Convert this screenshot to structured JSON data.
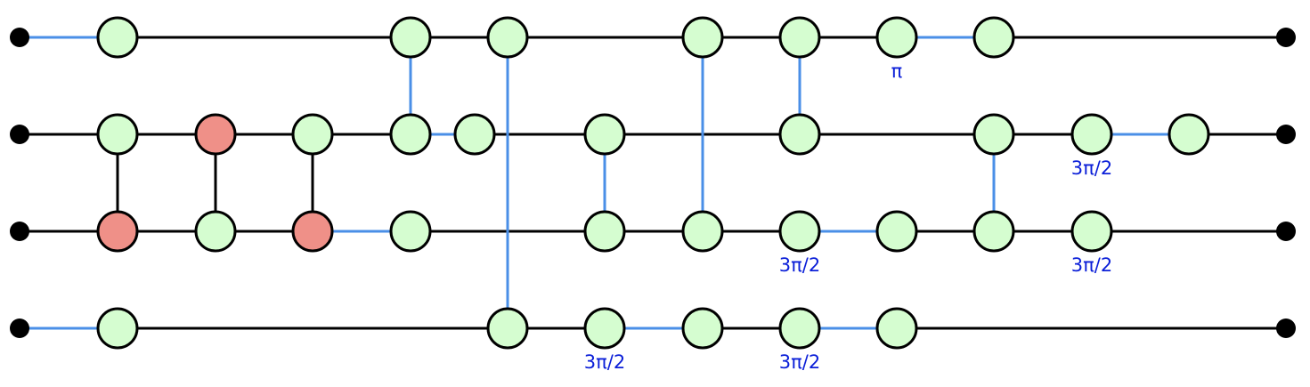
{
  "colors": {
    "plain_wire": "#000000",
    "hadamard_wire": "#4a8fe7",
    "green_spider": "#d5fdd0",
    "red_spider": "#ef9088",
    "boundary": "#000000",
    "selected_outline": "#0a1ee0",
    "phase_label": "#0b1fd8",
    "node_outline": "#000000"
  },
  "diagram": {
    "boundaries": [
      {
        "id": "in0"
      },
      {
        "id": "in1"
      },
      {
        "id": "in2"
      },
      {
        "id": "in3"
      },
      {
        "id": "out0"
      },
      {
        "id": "out1"
      },
      {
        "id": "out2"
      },
      {
        "id": "out3"
      }
    ],
    "spiders": [
      {
        "id": "z0a",
        "type": "Z"
      },
      {
        "id": "z0b",
        "type": "Z"
      },
      {
        "id": "z0c",
        "type": "Z"
      },
      {
        "id": "z0d",
        "type": "Z"
      },
      {
        "id": "z0e",
        "type": "Z"
      },
      {
        "id": "z0f",
        "type": "Z",
        "phase": "π"
      },
      {
        "id": "z0g",
        "type": "Z"
      },
      {
        "id": "z1a",
        "type": "Z"
      },
      {
        "id": "x1b",
        "type": "X"
      },
      {
        "id": "z1c",
        "type": "Z"
      },
      {
        "id": "z1d",
        "type": "Z"
      },
      {
        "id": "z1e",
        "type": "Z",
        "selected": true
      },
      {
        "id": "z1f",
        "type": "Z"
      },
      {
        "id": "z1g",
        "type": "Z"
      },
      {
        "id": "z1h",
        "type": "Z"
      },
      {
        "id": "z1i",
        "type": "Z",
        "phase": "3π/2"
      },
      {
        "id": "z1j",
        "type": "Z"
      },
      {
        "id": "x2a",
        "type": "X"
      },
      {
        "id": "z2b",
        "type": "Z"
      },
      {
        "id": "x2c",
        "type": "X"
      },
      {
        "id": "z2d",
        "type": "Z"
      },
      {
        "id": "z2e",
        "type": "Z"
      },
      {
        "id": "z2f",
        "type": "Z"
      },
      {
        "id": "z2g",
        "type": "Z",
        "phase": "3π/2"
      },
      {
        "id": "z2h",
        "type": "Z"
      },
      {
        "id": "z2i",
        "type": "Z"
      },
      {
        "id": "z2j",
        "type": "Z",
        "phase": "3π/2"
      },
      {
        "id": "z3a",
        "type": "Z"
      },
      {
        "id": "z3b",
        "type": "Z"
      },
      {
        "id": "z3c",
        "type": "Z",
        "phase": "3π/2"
      },
      {
        "id": "z3d",
        "type": "Z"
      },
      {
        "id": "z3e",
        "type": "Z",
        "phase": "3π/2"
      },
      {
        "id": "z3f",
        "type": "Z"
      }
    ],
    "edges": [
      {
        "from": "in0",
        "to": "z0a",
        "kind": "hadamard"
      },
      {
        "from": "z0a",
        "to": "z0b",
        "kind": "plain"
      },
      {
        "from": "z0b",
        "to": "z0c",
        "kind": "plain"
      },
      {
        "from": "z0c",
        "to": "z0d",
        "kind": "plain"
      },
      {
        "from": "z0d",
        "to": "z0e",
        "kind": "plain"
      },
      {
        "from": "z0e",
        "to": "z0f",
        "kind": "plain"
      },
      {
        "from": "z0f",
        "to": "z0g",
        "kind": "hadamard"
      },
      {
        "from": "z0g",
        "to": "out0",
        "kind": "plain"
      },
      {
        "from": "in1",
        "to": "z1a",
        "kind": "plain"
      },
      {
        "from": "z1a",
        "to": "x1b",
        "kind": "plain"
      },
      {
        "from": "x1b",
        "to": "z1c",
        "kind": "plain"
      },
      {
        "from": "z1c",
        "to": "z1d",
        "kind": "plain"
      },
      {
        "from": "z1d",
        "to": "z1e",
        "kind": "hadamard"
      },
      {
        "from": "z1e",
        "to": "z1f",
        "kind": "plain"
      },
      {
        "from": "z1f",
        "to": "z1g",
        "kind": "plain"
      },
      {
        "from": "z1g",
        "to": "z1h",
        "kind": "plain"
      },
      {
        "from": "z1h",
        "to": "z1i",
        "kind": "plain"
      },
      {
        "from": "z1i",
        "to": "z1j",
        "kind": "hadamard"
      },
      {
        "from": "z1j",
        "to": "out1",
        "kind": "plain"
      },
      {
        "from": "in2",
        "to": "x2a",
        "kind": "plain"
      },
      {
        "from": "x2a",
        "to": "z2b",
        "kind": "plain"
      },
      {
        "from": "z2b",
        "to": "x2c",
        "kind": "plain"
      },
      {
        "from": "x2c",
        "to": "z2d",
        "kind": "hadamard"
      },
      {
        "from": "z2d",
        "to": "z2e",
        "kind": "plain"
      },
      {
        "from": "z2e",
        "to": "z2f",
        "kind": "plain"
      },
      {
        "from": "z2f",
        "to": "z2g",
        "kind": "plain"
      },
      {
        "from": "z2g",
        "to": "z2h",
        "kind": "hadamard"
      },
      {
        "from": "z2h",
        "to": "z2i",
        "kind": "plain"
      },
      {
        "from": "z2i",
        "to": "z2j",
        "kind": "plain"
      },
      {
        "from": "z2j",
        "to": "out2",
        "kind": "plain"
      },
      {
        "from": "in3",
        "to": "z3a",
        "kind": "hadamard"
      },
      {
        "from": "z3a",
        "to": "z3b",
        "kind": "plain"
      },
      {
        "from": "z3b",
        "to": "z3c",
        "kind": "plain"
      },
      {
        "from": "z3c",
        "to": "z3d",
        "kind": "hadamard"
      },
      {
        "from": "z3d",
        "to": "z3e",
        "kind": "plain"
      },
      {
        "from": "z3e",
        "to": "z3f",
        "kind": "hadamard"
      },
      {
        "from": "z3f",
        "to": "out3",
        "kind": "plain"
      },
      {
        "from": "z1a",
        "to": "x2a",
        "kind": "plain"
      },
      {
        "from": "x1b",
        "to": "z2b",
        "kind": "plain"
      },
      {
        "from": "z1c",
        "to": "x2c",
        "kind": "plain"
      },
      {
        "from": "z0b",
        "to": "z1d",
        "kind": "hadamard"
      },
      {
        "from": "z0c",
        "to": "z3b",
        "kind": "hadamard"
      },
      {
        "from": "z1f",
        "to": "z2e",
        "kind": "hadamard"
      },
      {
        "from": "z0d",
        "to": "z2f",
        "kind": "hadamard"
      },
      {
        "from": "z0e",
        "to": "z1g",
        "kind": "hadamard"
      },
      {
        "from": "z1h",
        "to": "z2i",
        "kind": "hadamard"
      }
    ]
  }
}
